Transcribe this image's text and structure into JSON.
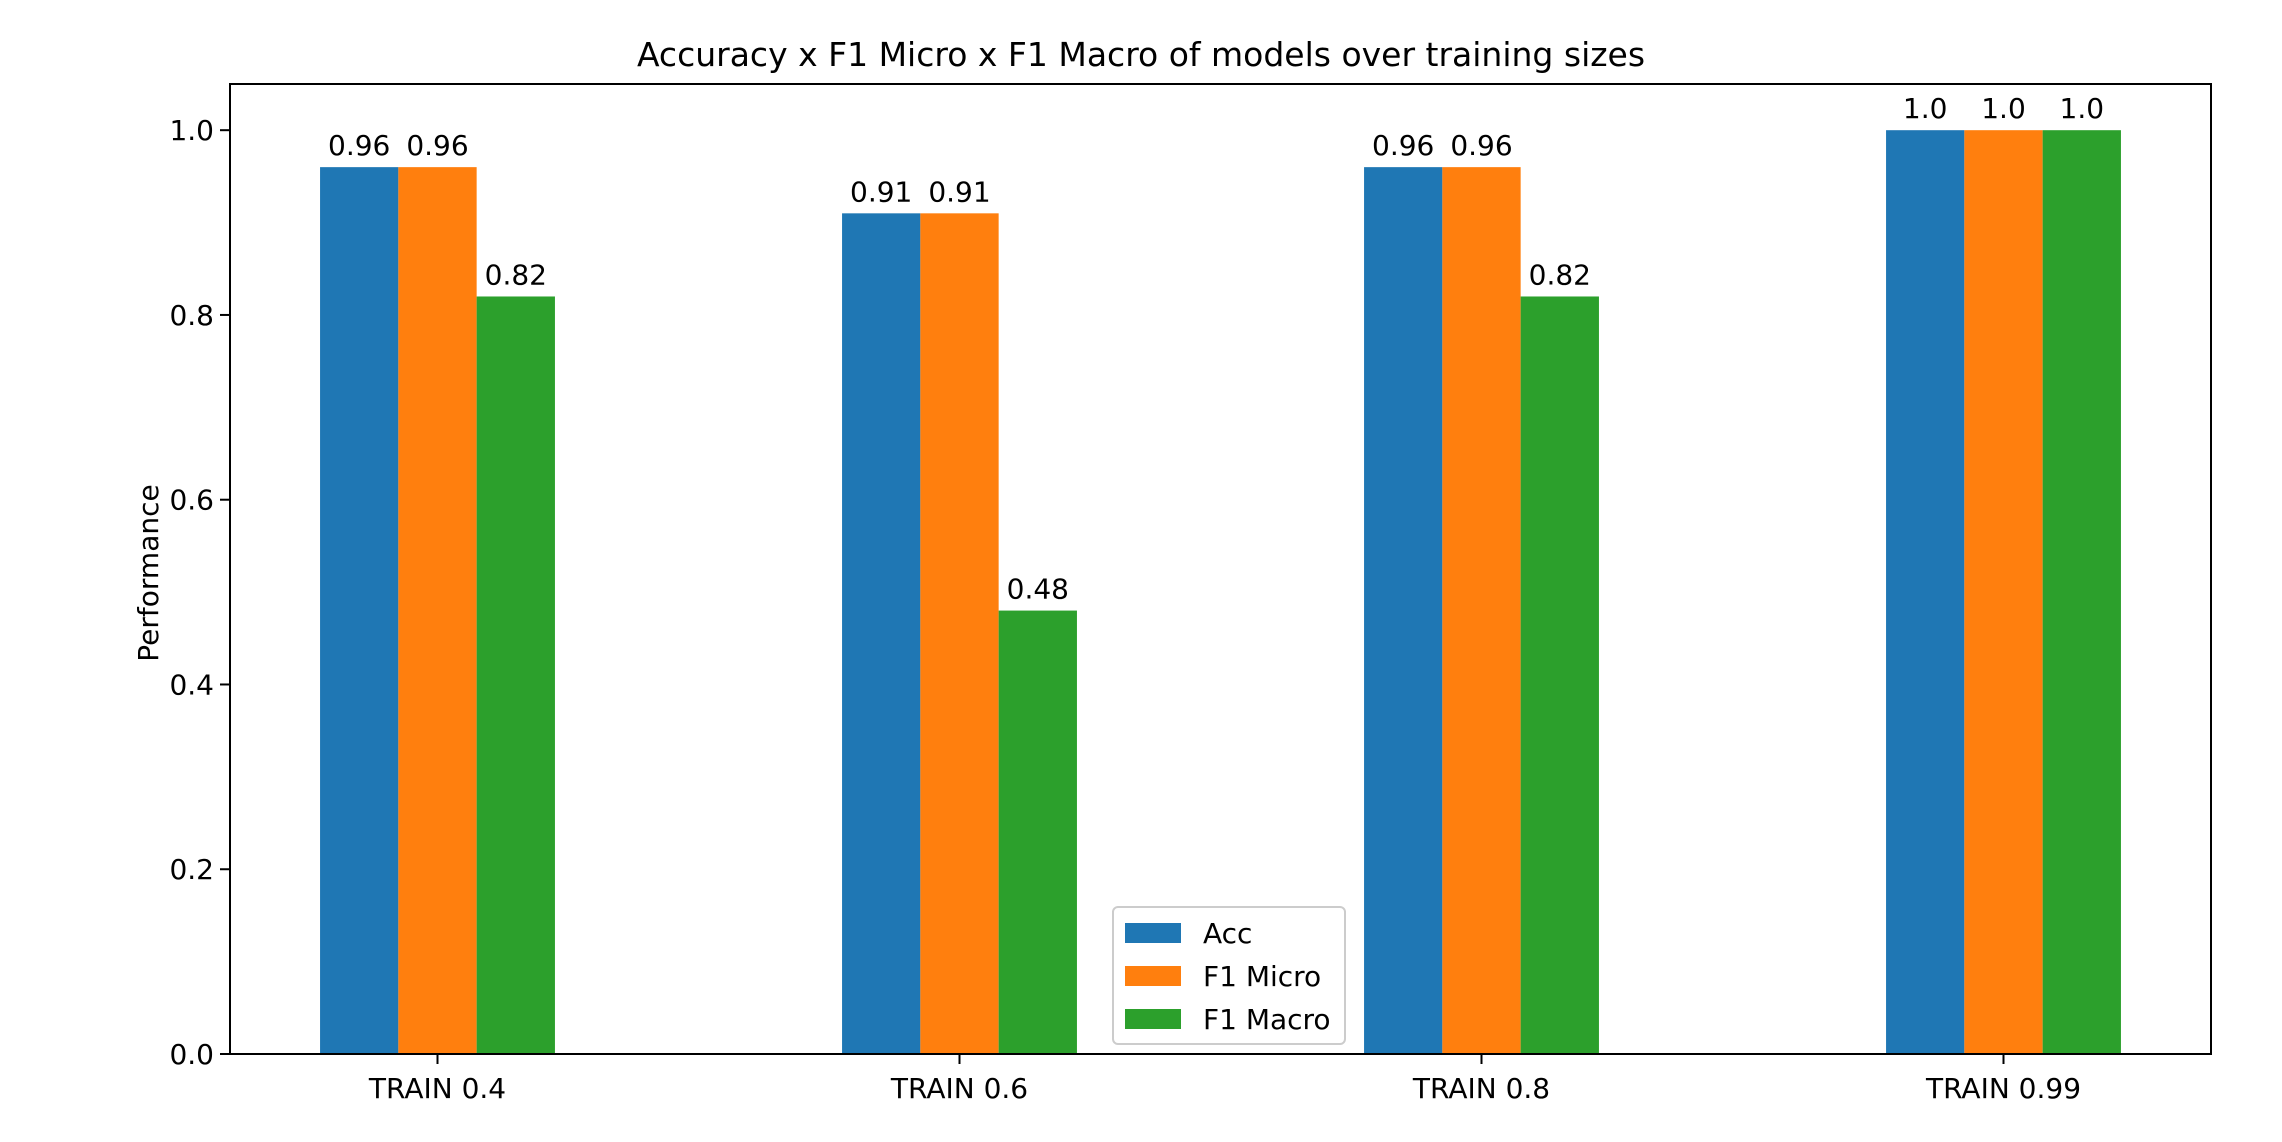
{
  "chart_data": {
    "type": "bar",
    "title": "Accuracy x F1 Micro x F1 Macro of models over training sizes",
    "xlabel": "",
    "ylabel": "Performance",
    "categories": [
      "TRAIN 0.4",
      "TRAIN 0.6",
      "TRAIN 0.8",
      "TRAIN 0.99"
    ],
    "series": [
      {
        "name": "Acc",
        "color": "#1f77b4",
        "values": [
          0.96,
          0.91,
          0.96,
          1.0
        ],
        "labels": [
          "0.96",
          "0.91",
          "0.96",
          "1.0"
        ]
      },
      {
        "name": "F1 Micro",
        "color": "#ff7f0e",
        "values": [
          0.96,
          0.91,
          0.96,
          1.0
        ],
        "labels": [
          "0.96",
          "0.91",
          "0.96",
          "1.0"
        ]
      },
      {
        "name": "F1 Macro",
        "color": "#2ca02c",
        "values": [
          0.82,
          0.48,
          0.82,
          1.0
        ],
        "labels": [
          "0.82",
          "0.48",
          "0.82",
          "1.0"
        ]
      }
    ],
    "ylim": [
      0,
      1.05
    ],
    "yticks": [
      0.0,
      0.2,
      0.4,
      0.6,
      0.8,
      1.0
    ],
    "ytick_labels": [
      "0.0",
      "0.2",
      "0.4",
      "0.6",
      "0.8",
      "1.0"
    ],
    "grid": false,
    "legend_position": "lower-center"
  }
}
